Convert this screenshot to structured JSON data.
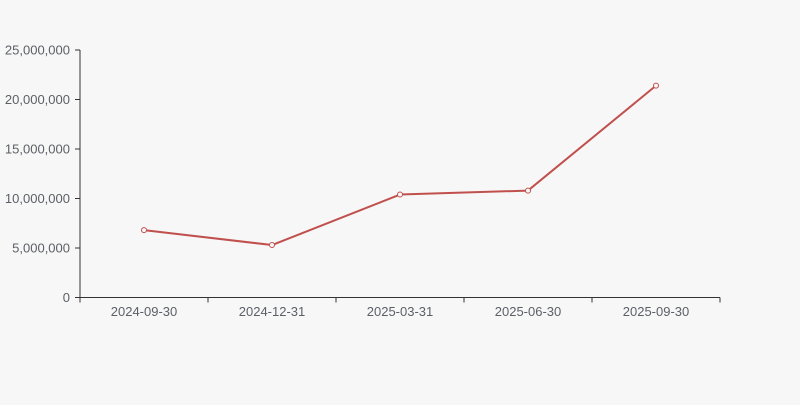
{
  "chart_data": {
    "type": "line",
    "title": "",
    "xlabel": "",
    "ylabel": "",
    "categories": [
      "2024-09-30",
      "2024-12-31",
      "2025-03-31",
      "2025-06-30",
      "2025-09-30"
    ],
    "series": [
      {
        "name": "series-1",
        "values": [
          6800000,
          5300000,
          10400000,
          10800000,
          21400000
        ],
        "color": "#c0504d",
        "marker": "hollow-circle"
      }
    ],
    "ylim": [
      0,
      25000000
    ],
    "y_ticks": [
      0,
      5000000,
      10000000,
      15000000,
      20000000,
      25000000
    ],
    "y_tick_labels": [
      "0",
      "5,000,000",
      "10,000,000",
      "15,000,000",
      "20,000,000",
      "25,000,000"
    ],
    "grid": "off",
    "legend": "none",
    "background_color": "#f7f7f7",
    "axis_color": "#333333",
    "label_color": "#5c6066"
  }
}
